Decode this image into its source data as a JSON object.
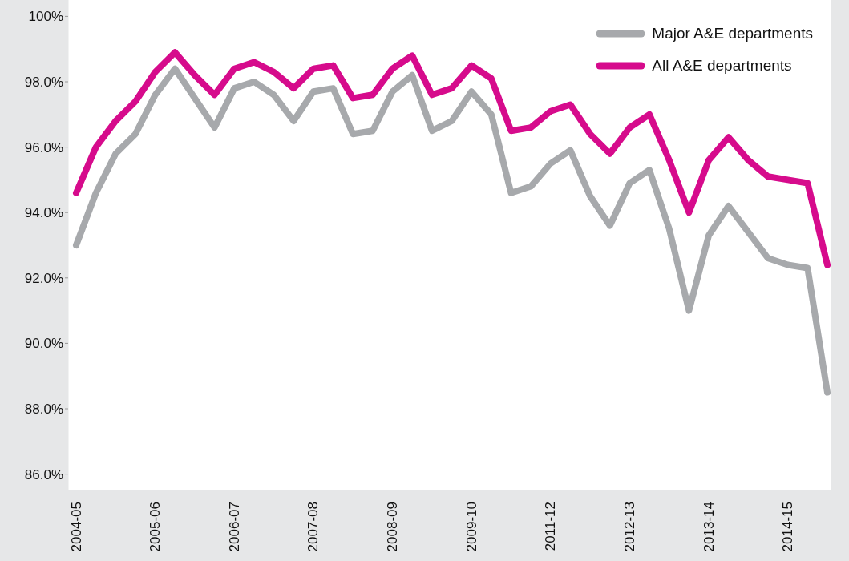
{
  "chart_data": {
    "type": "line",
    "categories": [
      "2004-05",
      null,
      null,
      null,
      "2005-06",
      null,
      null,
      null,
      "2006-07",
      null,
      null,
      null,
      "2007-08",
      null,
      null,
      null,
      "2008-09",
      null,
      null,
      null,
      "2009-10",
      null,
      null,
      null,
      "2011-12",
      null,
      null,
      null,
      "2012-13",
      null,
      null,
      null,
      "2013-14",
      null,
      null,
      null,
      "2014-15",
      null,
      null
    ],
    "series": [
      {
        "name": "Major A&E departments",
        "color": "#a7a9ac",
        "values": [
          93.0,
          94.6,
          95.8,
          96.4,
          97.6,
          98.4,
          97.5,
          96.6,
          97.8,
          98.0,
          97.6,
          96.8,
          97.7,
          97.8,
          96.4,
          96.5,
          97.7,
          98.2,
          96.5,
          96.8,
          97.7,
          97.0,
          94.6,
          94.8,
          95.5,
          95.9,
          94.5,
          93.6,
          94.9,
          95.3,
          93.5,
          91.0,
          93.3,
          94.2,
          93.4,
          92.6,
          92.4,
          92.3,
          88.5
        ]
      },
      {
        "name": "All A&E departments",
        "color": "#d60b8c",
        "values": [
          94.6,
          96.0,
          96.8,
          97.4,
          98.3,
          98.9,
          98.2,
          97.6,
          98.4,
          98.6,
          98.3,
          97.8,
          98.4,
          98.5,
          97.5,
          97.6,
          98.4,
          98.8,
          97.6,
          97.8,
          98.5,
          98.1,
          96.5,
          96.6,
          97.1,
          97.3,
          96.4,
          95.8,
          96.6,
          97.0,
          95.6,
          94.0,
          95.6,
          96.3,
          95.6,
          95.1,
          95.0,
          94.9,
          92.4
        ]
      }
    ],
    "ylim": [
      85.5,
      100.5
    ],
    "yticks": [
      {
        "value": 86,
        "label": "86.0%"
      },
      {
        "value": 88,
        "label": "88.0%"
      },
      {
        "value": 90,
        "label": "90.0%"
      },
      {
        "value": 92,
        "label": "92.0%"
      },
      {
        "value": 94,
        "label": "94.0%"
      },
      {
        "value": 96,
        "label": "96.0%"
      },
      {
        "value": 98,
        "label": "98.0%"
      },
      {
        "value": 100,
        "label": "100%"
      }
    ],
    "legend": "top right",
    "marker": "none",
    "line_style": "solid"
  }
}
